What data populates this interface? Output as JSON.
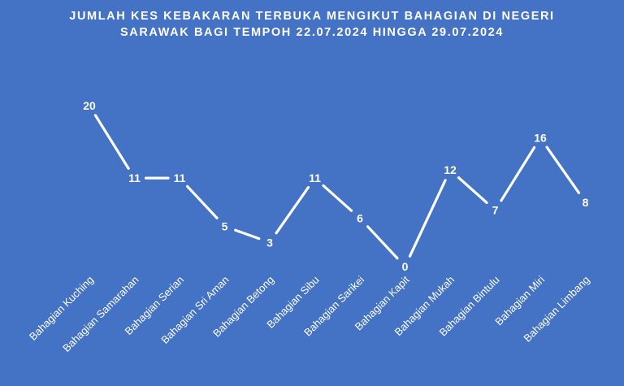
{
  "chart_data": {
    "type": "line",
    "title_line1": "JUMLAH KES KEBAKARAN TERBUKA MENGIKUT BAHAGIAN DI NEGERI",
    "title_line2": "SARAWAK BAGI TEMPOH 22.07.2024 HINGGA 29.07.2024",
    "categories": [
      "Bahagian Kuching",
      "Bahagian Samarahan",
      "Bahagian Serian",
      "Bahagian Sri Aman",
      "Bahagian Betong",
      "Bahagian Sibu",
      "Bahagian Sarikei",
      "Bahagian Kapit",
      "Bahagian Mukah",
      "Bahagian Bintulu",
      "Bahagian Miri",
      "Bahagian Limbang"
    ],
    "values": [
      20,
      11,
      11,
      5,
      3,
      11,
      6,
      0,
      12,
      7,
      16,
      8
    ],
    "ylim": [
      0,
      20
    ],
    "grid": false,
    "data_labels": true,
    "drop_lines": true,
    "colors": {
      "background": "#4472C4",
      "line": "#FFFFFF",
      "text": "#FFFFFF"
    }
  }
}
